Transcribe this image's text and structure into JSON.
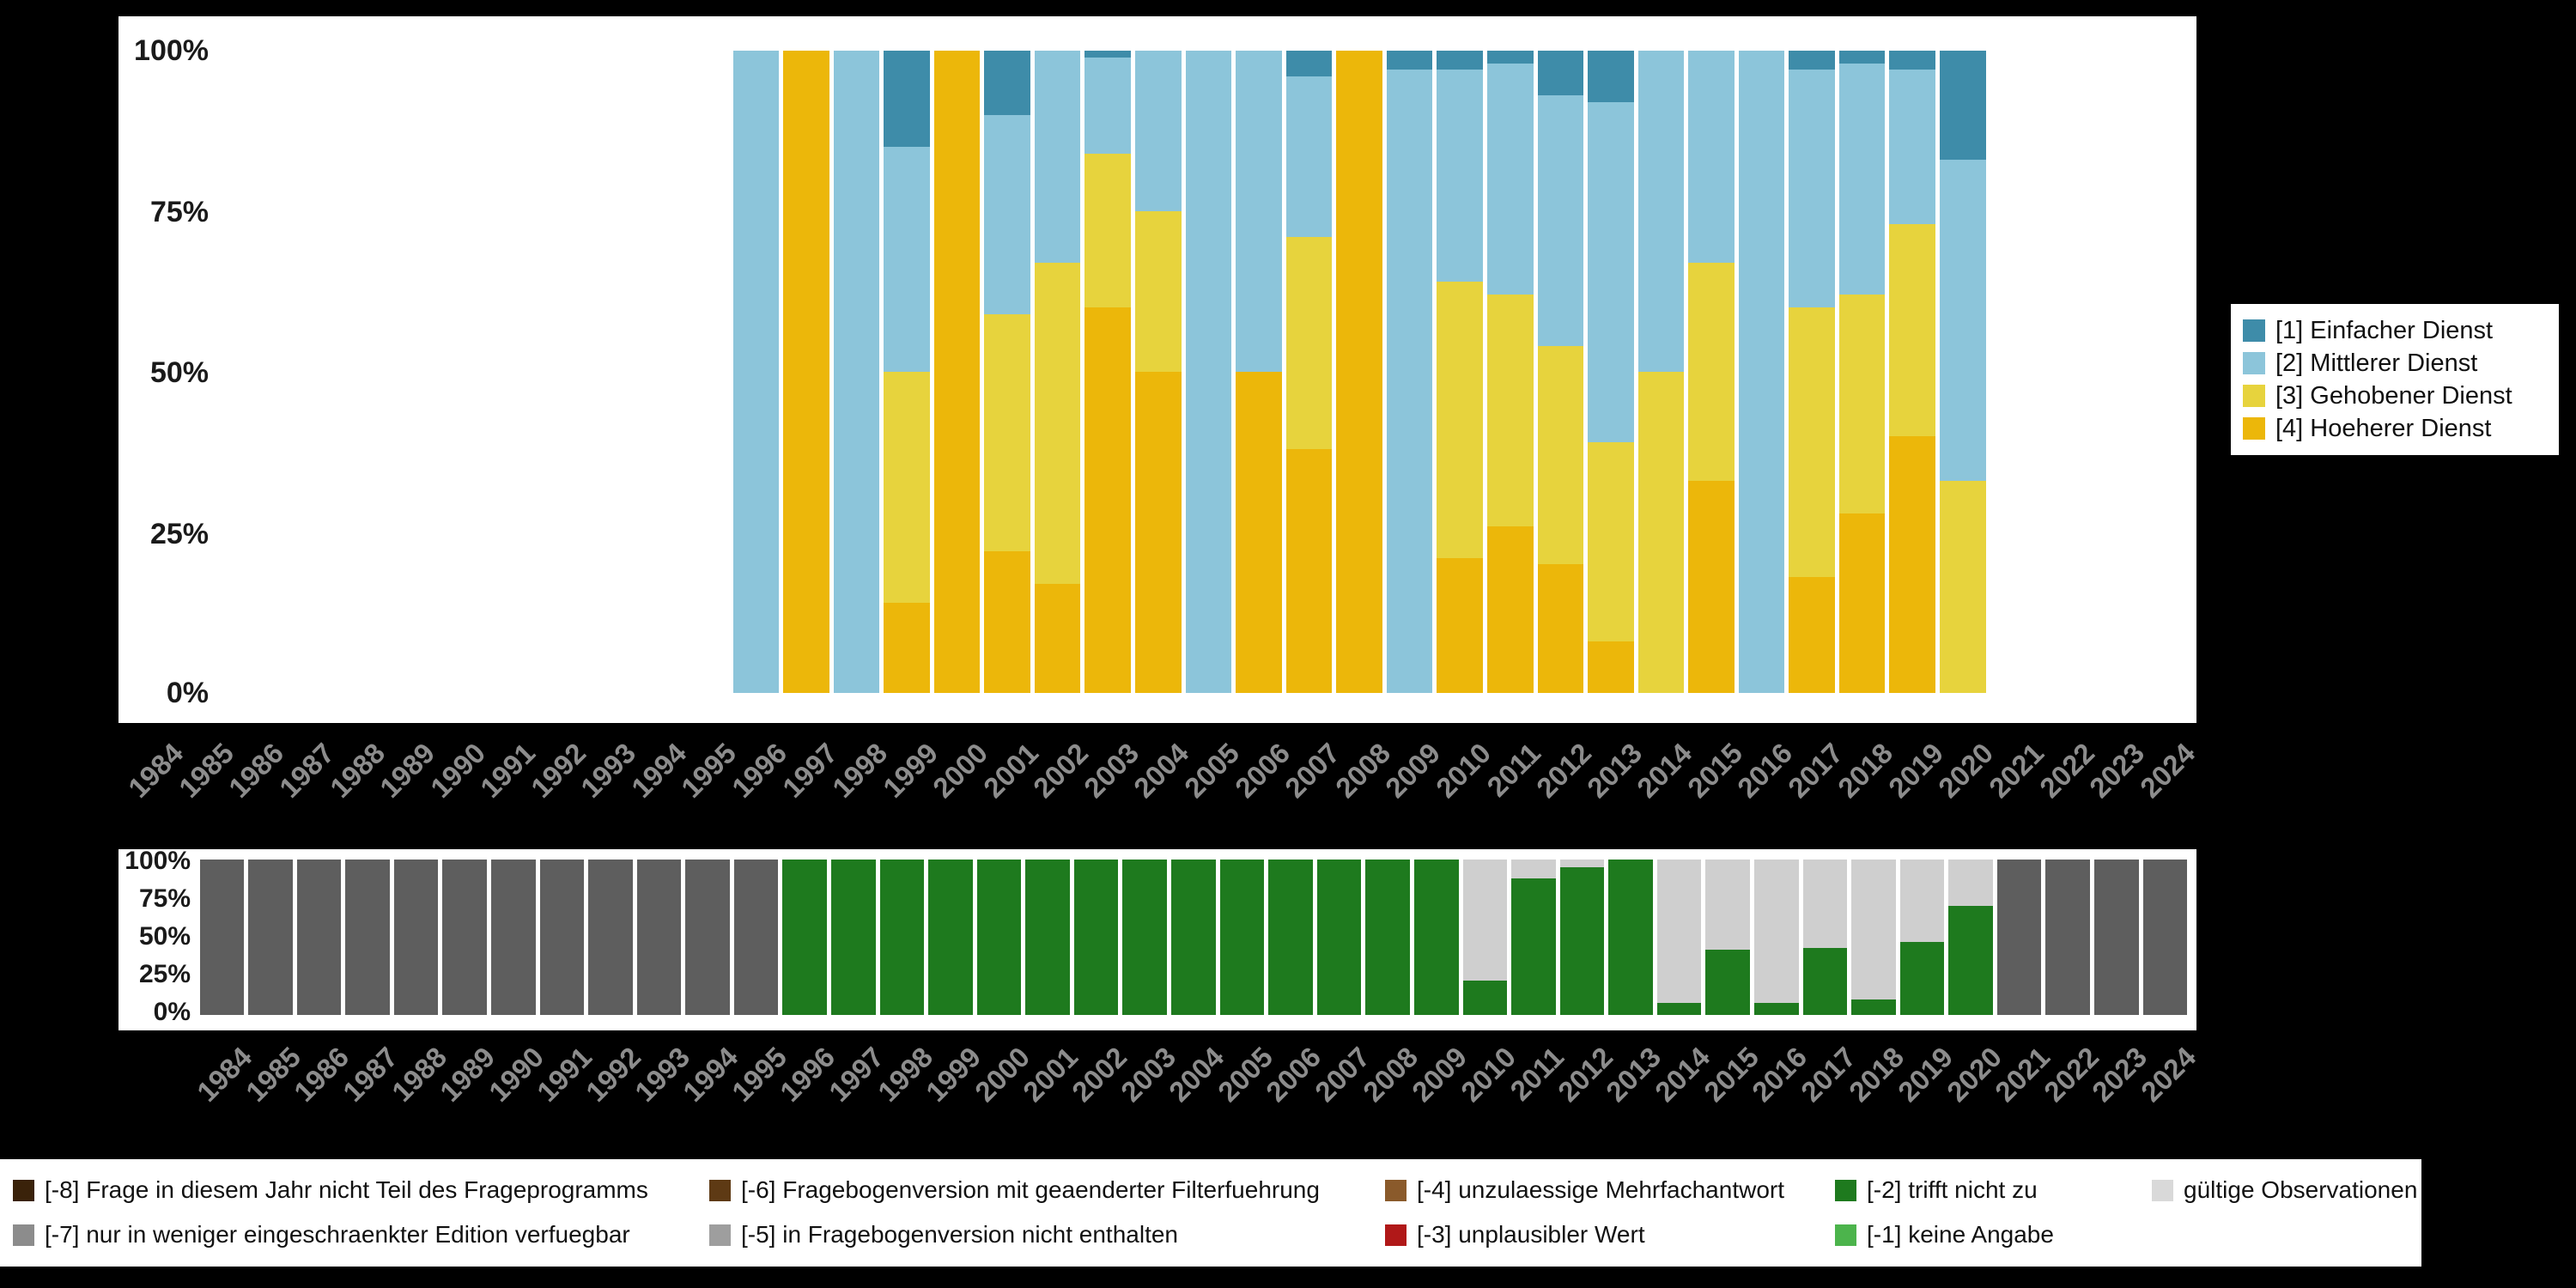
{
  "figure": {
    "background": "#000000",
    "panel_background": "#ffffff",
    "year_label_color": "#8c8c8c",
    "tick_label_color": "#1a1a1a"
  },
  "x_axis_years": [
    "1984",
    "1985",
    "1986",
    "1987",
    "1988",
    "1989",
    "1990",
    "1991",
    "1992",
    "1993",
    "1994",
    "1995",
    "1996",
    "1997",
    "1998",
    "1999",
    "2000",
    "2001",
    "2002",
    "2003",
    "2004",
    "2005",
    "2006",
    "2007",
    "2008",
    "2009",
    "2010",
    "2011",
    "2012",
    "2013",
    "2014",
    "2015",
    "2016",
    "2017",
    "2018",
    "2019",
    "2020",
    "2021",
    "2022",
    "2023",
    "2024"
  ],
  "chart_data": [
    {
      "type": "bar",
      "stacked": true,
      "stack_order": "bottom-to-top",
      "title": "",
      "xlabel": "",
      "ylabel": "",
      "ylim": [
        0,
        100
      ],
      "yticks": [
        "100%",
        "75%",
        "50%",
        "25%",
        "0%"
      ],
      "legend_position": "right",
      "categories": [
        "1996",
        "1997",
        "1998",
        "1999",
        "2000",
        "2001",
        "2002",
        "2003",
        "2004",
        "2005",
        "2006",
        "2007",
        "2008",
        "2009",
        "2010",
        "2011",
        "2012",
        "2013",
        "2014",
        "2015",
        "2016",
        "2017",
        "2018",
        "2019",
        "2020"
      ],
      "series": [
        {
          "name": "[4] Hoeherer Dienst",
          "key": "hoeherer-dienst",
          "color": "#ecb70a",
          "values": [
            0,
            100,
            0,
            14,
            100,
            22,
            17,
            60,
            50,
            0,
            50,
            38,
            100,
            0,
            21,
            26,
            20,
            8,
            0,
            33,
            0,
            18,
            28,
            40,
            0
          ]
        },
        {
          "name": "[3] Gehobener Dienst",
          "key": "gehobener-dienst",
          "color": "#e7d33d",
          "values": [
            0,
            0,
            0,
            36,
            0,
            37,
            50,
            24,
            25,
            0,
            0,
            33,
            0,
            0,
            43,
            36,
            34,
            31,
            50,
            34,
            0,
            42,
            34,
            33,
            33
          ]
        },
        {
          "name": "[2] Mittlerer Dienst",
          "key": "mittlerer-dienst",
          "color": "#8cc5da",
          "values": [
            100,
            0,
            100,
            35,
            0,
            31,
            33,
            15,
            25,
            100,
            50,
            25,
            0,
            97,
            33,
            36,
            39,
            53,
            50,
            33,
            100,
            37,
            36,
            24,
            50
          ]
        },
        {
          "name": "[1] Einfacher Dienst",
          "key": "einfacher-dienst",
          "color": "#3e8ca9",
          "values": [
            0,
            0,
            0,
            15,
            0,
            10,
            0,
            1,
            0,
            0,
            0,
            4,
            0,
            3,
            3,
            2,
            7,
            8,
            0,
            0,
            0,
            3,
            2,
            3,
            17
          ]
        }
      ]
    },
    {
      "type": "bar",
      "stacked": true,
      "stack_order": "bottom-to-top",
      "title": "",
      "xlabel": "",
      "ylabel": "",
      "ylim": [
        0,
        100
      ],
      "yticks": [
        "100%",
        "75%",
        "50%",
        "25%",
        "0%"
      ],
      "categories": [
        "1984",
        "1985",
        "1986",
        "1987",
        "1988",
        "1989",
        "1990",
        "1991",
        "1992",
        "1993",
        "1994",
        "1995",
        "1996",
        "1997",
        "1998",
        "1999",
        "2000",
        "2001",
        "2002",
        "2003",
        "2004",
        "2005",
        "2006",
        "2007",
        "2008",
        "2009",
        "2010",
        "2011",
        "2012",
        "2013",
        "2014",
        "2015",
        "2016",
        "2017",
        "2018",
        "2019",
        "2020",
        "2021",
        "2022",
        "2023",
        "2024"
      ],
      "series": [
        {
          "name": "[-2] trifft nicht zu",
          "key": "trifft-nicht-zu",
          "color": "#1e7a1e",
          "values": [
            0,
            0,
            0,
            0,
            0,
            0,
            0,
            0,
            0,
            0,
            0,
            0,
            100,
            100,
            100,
            100,
            100,
            100,
            100,
            100,
            100,
            100,
            100,
            100,
            100,
            100,
            22,
            88,
            95,
            100,
            8,
            42,
            8,
            43,
            10,
            47,
            70,
            0,
            0,
            0,
            0
          ]
        },
        {
          "name": "gültige Observationen",
          "key": "gueltige-observationen",
          "color": "#cfcfcf",
          "values": [
            0,
            0,
            0,
            0,
            0,
            0,
            0,
            0,
            0,
            0,
            0,
            0,
            0,
            0,
            0,
            0,
            0,
            0,
            0,
            0,
            0,
            0,
            0,
            0,
            0,
            0,
            78,
            12,
            5,
            0,
            92,
            58,
            92,
            57,
            90,
            53,
            30,
            0,
            0,
            0,
            0
          ]
        },
        {
          "name": "nicht Teil des Frageprogramms",
          "key": "nicht-teil-des-frageprogramms",
          "color": "#5e5e5e",
          "values": [
            100,
            100,
            100,
            100,
            100,
            100,
            100,
            100,
            100,
            100,
            100,
            100,
            0,
            0,
            0,
            0,
            0,
            0,
            0,
            0,
            0,
            0,
            0,
            0,
            0,
            0,
            0,
            0,
            0,
            0,
            0,
            0,
            0,
            0,
            0,
            0,
            0,
            100,
            100,
            100,
            100
          ]
        }
      ]
    }
  ],
  "legend": {
    "items": [
      {
        "label": "[1] Einfacher Dienst",
        "key": "einfacher-dienst",
        "color": "#3e8ca9"
      },
      {
        "label": "[2] Mittlerer Dienst",
        "key": "mittlerer-dienst",
        "color": "#8cc5da"
      },
      {
        "label": "[3] Gehobener Dienst",
        "key": "gehobener-dienst",
        "color": "#e7d33d"
      },
      {
        "label": "[4] Hoeherer Dienst",
        "key": "hoeherer-dienst",
        "color": "#ecb70a"
      }
    ]
  },
  "missing_legend": {
    "rows": [
      [
        {
          "label": "[-8] Frage in diesem Jahr nicht Teil des Frageprogramms",
          "key": "missing-8",
          "color": "#3a220a"
        },
        {
          "label": "[-6] Fragebogenversion mit geaenderter Filterfuehrung",
          "key": "missing-6",
          "color": "#5e3a14"
        },
        {
          "label": "[-4] unzulaessige Mehrfachantwort",
          "key": "missing-4",
          "color": "#8a5a2b"
        },
        {
          "label": "[-2] trifft nicht zu",
          "key": "missing-2",
          "color": "#1e7a1e"
        },
        {
          "label": "gültige Observationen",
          "key": "gueltige-observationen",
          "color": "#d9d9d9"
        }
      ],
      [
        {
          "label": "[-7] nur in weniger eingeschraenkter Edition verfuegbar",
          "key": "missing-7",
          "color": "#8c8c8c"
        },
        {
          "label": "[-5] in Fragebogenversion nicht enthalten",
          "key": "missing-5",
          "color": "#9e9e9e"
        },
        {
          "label": "[-3] unplausibler Wert",
          "key": "missing-3",
          "color": "#b01818"
        },
        {
          "label": "[-1] keine Angabe",
          "key": "missing-1",
          "color": "#4cb44c"
        }
      ]
    ]
  }
}
